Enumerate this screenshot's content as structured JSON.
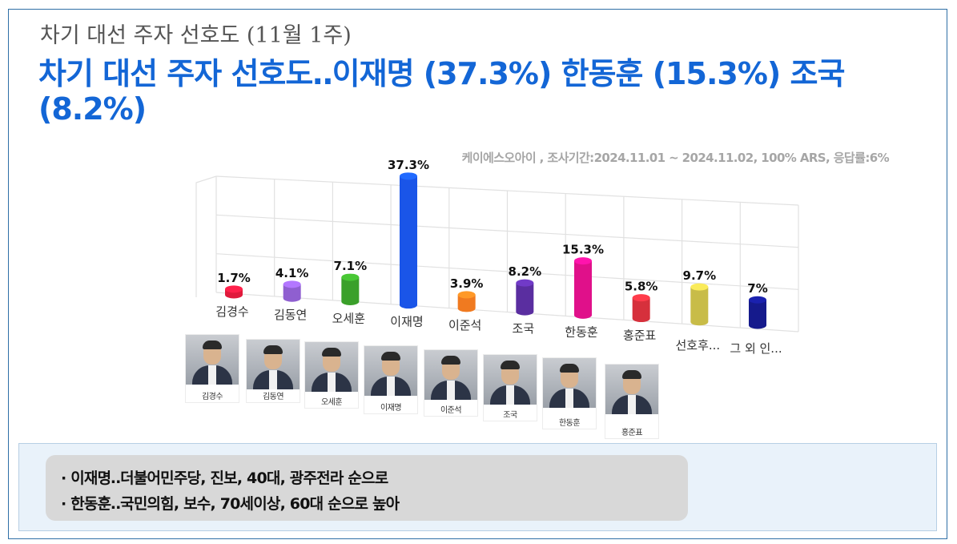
{
  "subtitle": "차기 대선 주자 선호도 (11월 1주)",
  "headline": "차기 대선 주자 선호도‥이재명 (37.3%) 한동훈 (15.3%) 조국 (8.2%)",
  "source_note": "케이에스오아이 , 조사기간:2024.11.01 ~ 2024.11.02, 100% ARS, 응답률:6%",
  "chart_data": {
    "type": "bar",
    "title": "",
    "xlabel": "",
    "ylabel": "",
    "ylim": [
      0,
      40
    ],
    "grid": true,
    "legend": "none",
    "categories": [
      "김경수",
      "김동연",
      "오세훈",
      "이재명",
      "이준석",
      "조국",
      "한동훈",
      "홍준표",
      "선호후...",
      "그 외 인..."
    ],
    "values": [
      1.7,
      4.1,
      7.1,
      37.3,
      3.9,
      8.2,
      15.3,
      5.8,
      9.7,
      7
    ],
    "value_labels": [
      "1.7%",
      "4.1%",
      "7.1%",
      "37.3%",
      "3.9%",
      "8.2%",
      "15.3%",
      "5.8%",
      "9.7%",
      "7%"
    ],
    "colors": [
      "#e01a3c",
      "#8f5fd0",
      "#3aa02a",
      "#1a55e8",
      "#f07a20",
      "#5a2ea0",
      "#e0108a",
      "#d6303c",
      "#c8bc48",
      "#151a8c"
    ]
  },
  "photos": {
    "captions": [
      "김경수",
      "김동연",
      "오세훈",
      "이재명",
      "이준석",
      "조국",
      "한동훈",
      "홍준표"
    ]
  },
  "summary": {
    "line1": "· 이재명‥더불어민주당, 진보, 40대, 광주전라 순으로",
    "line2": "· 한동훈‥국민의힘, 보수, 70세이상, 60대 순으로 높아"
  }
}
